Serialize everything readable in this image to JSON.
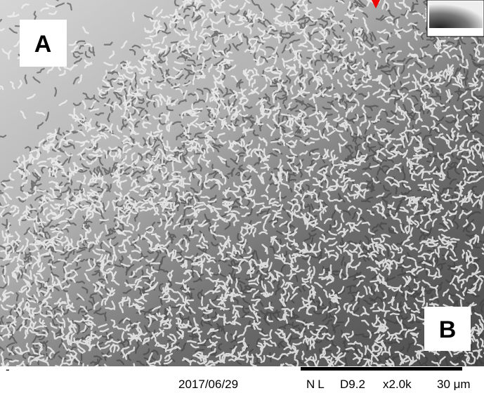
{
  "labels": {
    "a": "A",
    "b": "B"
  },
  "footer": {
    "marker": "-",
    "date": "2017/06/29",
    "mode": "NL",
    "working_distance": "D9.2",
    "magnification": "x2.0k",
    "scale_bar": "30 μm"
  }
}
